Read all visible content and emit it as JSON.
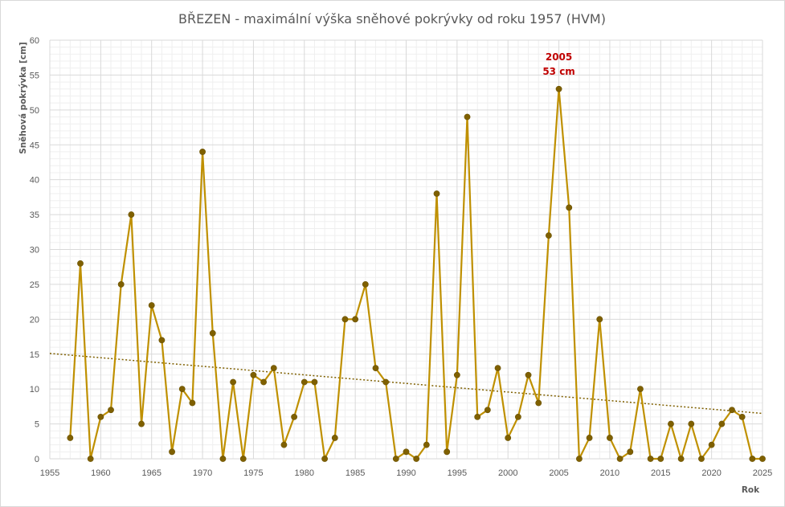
{
  "chart_data": {
    "type": "line",
    "title": "BŘEZEN - maximální výška sněhové pokrývky od roku 1957 (HVM)",
    "xlabel": "Rok",
    "ylabel": "Sněhová pokrývka [cm]",
    "xlim": [
      1955,
      2025
    ],
    "ylim": [
      0,
      60
    ],
    "xticks": [
      1955,
      1960,
      1965,
      1970,
      1975,
      1980,
      1985,
      1990,
      1995,
      2000,
      2005,
      2010,
      2015,
      2020,
      2025
    ],
    "yticks": [
      0,
      5,
      10,
      15,
      20,
      25,
      30,
      35,
      40,
      45,
      50,
      55,
      60
    ],
    "grid": true,
    "colors": {
      "line": "#bf9000",
      "marker": "#7f6000",
      "trend": "#7f6000",
      "annotation": "#c00000",
      "grid": "#d9d9d9"
    },
    "series": [
      {
        "x": [
          1957,
          1958,
          1959,
          1960,
          1961,
          1962,
          1963,
          1964,
          1965,
          1966,
          1967,
          1968,
          1969,
          1970,
          1971,
          1972,
          1973,
          1974,
          1975,
          1976,
          1977,
          1978,
          1979,
          1980,
          1981,
          1982,
          1983,
          1984,
          1985,
          1986,
          1987,
          1988,
          1989,
          1990,
          1991,
          1992,
          1993,
          1994,
          1995,
          1996,
          1997,
          1998,
          1999,
          2000,
          2001,
          2002,
          2003,
          2004,
          2005,
          2006,
          2007,
          2008,
          2009,
          2010,
          2011,
          2012,
          2013,
          2014,
          2015,
          2016,
          2017,
          2018,
          2019,
          2020,
          2021,
          2022,
          2023,
          2024,
          2025
        ],
        "values": [
          3,
          28,
          0,
          6,
          7,
          25,
          35,
          5,
          22,
          17,
          1,
          10,
          8,
          44,
          18,
          0,
          11,
          0,
          12,
          11,
          13,
          2,
          6,
          11,
          11,
          0,
          3,
          20,
          20,
          25,
          13,
          11,
          0,
          1,
          0,
          2,
          38,
          1,
          12,
          49,
          6,
          7,
          13,
          3,
          6,
          12,
          8,
          32,
          53,
          36,
          0,
          3,
          20,
          3,
          0,
          1,
          10,
          0,
          0,
          5,
          0,
          5,
          0,
          2,
          5,
          7,
          6,
          0,
          0
        ]
      }
    ],
    "trendline": {
      "style": "dotted",
      "x": [
        1955,
        2025
      ],
      "y": [
        15.1,
        6.5
      ]
    },
    "annotations": [
      {
        "x": 2005,
        "y": 53,
        "lines": [
          "2005",
          "53 cm"
        ]
      }
    ]
  }
}
